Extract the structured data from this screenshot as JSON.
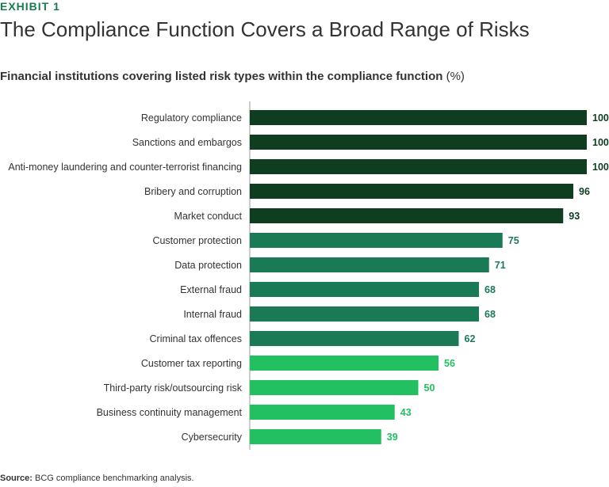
{
  "exhibit_label": "EXHIBIT 1",
  "chart_data": {
    "type": "bar",
    "orientation": "horizontal",
    "title": "The Compliance Function Covers a Broad Range of Risks",
    "subtitle": "Financial institutions covering listed risk types within the compliance function",
    "unit": "(%)",
    "categories": [
      "Regulatory compliance",
      "Sanctions and embargos",
      "Anti-money laundering and counter-terrorist financing",
      "Bribery and corruption",
      "Market conduct",
      "Customer protection",
      "Data protection",
      "External fraud",
      "Internal fraud",
      "Criminal tax offences",
      "Customer tax reporting",
      "Third-party risk/outsourcing risk",
      "Business continuity management",
      "Cybersecurity"
    ],
    "values": [
      100,
      100,
      100,
      96,
      93,
      75,
      71,
      68,
      68,
      62,
      56,
      50,
      43,
      39
    ],
    "xlim": [
      0,
      100
    ],
    "grid": false,
    "colors": {
      "dark": "#0f3d20",
      "medium": "#1b7a56",
      "light": "#22c060"
    },
    "color_groups": [
      "dark",
      "dark",
      "dark",
      "dark",
      "dark",
      "medium",
      "medium",
      "medium",
      "medium",
      "medium",
      "light",
      "light",
      "light",
      "light"
    ]
  },
  "source": {
    "label": "Source:",
    "text": "BCG compliance benchmarking analysis."
  }
}
